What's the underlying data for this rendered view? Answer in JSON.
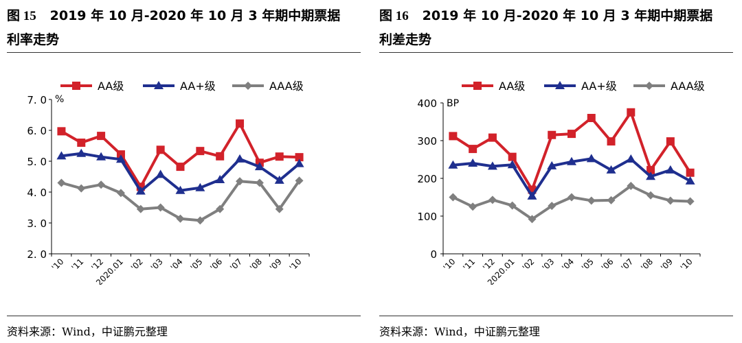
{
  "panels": [
    {
      "title_line1_no": "图 15",
      "title_line1_text": "2019 年 10 月-2020 年 10 月 3 年期中期票据",
      "title_line2": "利率走势",
      "source": "资料来源：Wind，中证鹏元整理"
    },
    {
      "title_line1_no": "图 16",
      "title_line1_text": "2019 年 10 月-2020 年 10 月 3 年期中期票据",
      "title_line2": "利差走势",
      "source": "资料来源：Wind，中证鹏元整理"
    }
  ],
  "colors": {
    "AA": "#d2222a",
    "AAplus": "#1f2f8f",
    "AAA": "#7f7f7f",
    "axis": "#000000"
  },
  "chart_data": [
    {
      "type": "line",
      "categories": [
        "'10",
        "'11",
        "'12",
        "2020.01",
        "'02",
        "'03",
        "'04",
        "'05",
        "'06",
        "'07",
        "'08",
        "'09",
        "'10"
      ],
      "series": [
        {
          "name": "AA级",
          "marker": "square",
          "color_key": "AA",
          "values": [
            5.97,
            5.6,
            5.82,
            5.22,
            4.17,
            5.37,
            4.82,
            5.33,
            5.16,
            6.22,
            4.95,
            5.15,
            5.13
          ]
        },
        {
          "name": "AA+级",
          "marker": "triangle",
          "color_key": "AAplus",
          "values": [
            5.17,
            5.25,
            5.14,
            5.06,
            4.03,
            4.57,
            4.05,
            4.14,
            4.4,
            5.07,
            4.82,
            4.38,
            4.92
          ]
        },
        {
          "name": "AAA级",
          "marker": "diamond",
          "color_key": "AAA",
          "values": [
            4.3,
            4.12,
            4.24,
            3.97,
            3.45,
            3.5,
            3.14,
            3.08,
            3.45,
            4.35,
            4.3,
            3.45,
            4.37
          ]
        }
      ],
      "unit_label": "%",
      "ylim": [
        2.0,
        7.0
      ],
      "yticks": [
        2.0,
        3.0,
        4.0,
        5.0,
        6.0,
        7.0
      ],
      "ytick_labels": [
        "2. 0",
        "3. 0",
        "4. 0",
        "5. 0",
        "6. 0",
        "7. 0"
      ],
      "legend": "top",
      "grid": false
    },
    {
      "type": "line",
      "categories": [
        "'10",
        "'11",
        "'12",
        "2020.01",
        "'02",
        "'03",
        "'04",
        "'05",
        "'06",
        "'07",
        "'08",
        "'09",
        "'10"
      ],
      "series": [
        {
          "name": "AA级",
          "marker": "square",
          "color_key": "AA",
          "values": [
            312,
            278,
            308,
            257,
            170,
            315,
            318,
            360,
            298,
            375,
            222,
            298,
            215
          ]
        },
        {
          "name": "AA+级",
          "marker": "triangle",
          "color_key": "AAplus",
          "values": [
            235,
            240,
            232,
            236,
            153,
            233,
            244,
            252,
            222,
            251,
            205,
            222,
            193
          ]
        },
        {
          "name": "AAA级",
          "marker": "diamond",
          "color_key": "AAA",
          "values": [
            150,
            125,
            143,
            128,
            92,
            127,
            150,
            141,
            142,
            180,
            155,
            141,
            139
          ]
        }
      ],
      "unit_label": "BP",
      "ylim": [
        0,
        400
      ],
      "yticks": [
        0,
        100,
        200,
        300,
        400
      ],
      "ytick_labels": [
        "0",
        "100",
        "200",
        "300",
        "400"
      ],
      "legend": "top",
      "grid": false
    }
  ]
}
